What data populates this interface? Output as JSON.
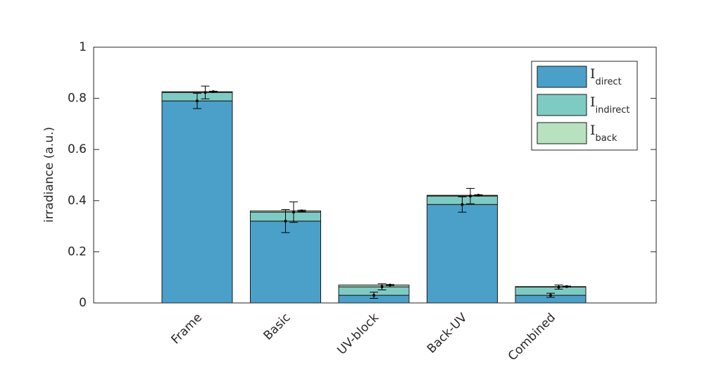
{
  "chart_data": {
    "type": "stacked-bar",
    "ylabel": "irradiance (a.u.)",
    "categories": [
      "Frame",
      "Basic",
      "UV-block",
      "Back-UV",
      "Combined"
    ],
    "series": [
      {
        "name": "I_direct",
        "color": "#4aa0c8",
        "values": [
          0.79,
          0.32,
          0.03,
          0.385,
          0.03
        ],
        "errors": [
          0.03,
          0.045,
          0.012,
          0.03,
          0.008
        ]
      },
      {
        "name": "I_indirect",
        "color": "#7ecbc4",
        "values": [
          0.033,
          0.035,
          0.033,
          0.033,
          0.032
        ],
        "errors": [
          0.025,
          0.04,
          0.012,
          0.03,
          0.008
        ]
      },
      {
        "name": "I_back",
        "color": "#b8e2bf",
        "values": [
          0.003,
          0.005,
          0.007,
          0.003,
          0.002
        ],
        "errors": [
          0.002,
          0.003,
          0.002,
          0.002,
          0.002
        ]
      }
    ],
    "ylim": [
      0,
      1
    ],
    "yticks": [
      0,
      0.2,
      0.4,
      0.6,
      0.8,
      1
    ],
    "legend": "upper right",
    "grid": false
  }
}
